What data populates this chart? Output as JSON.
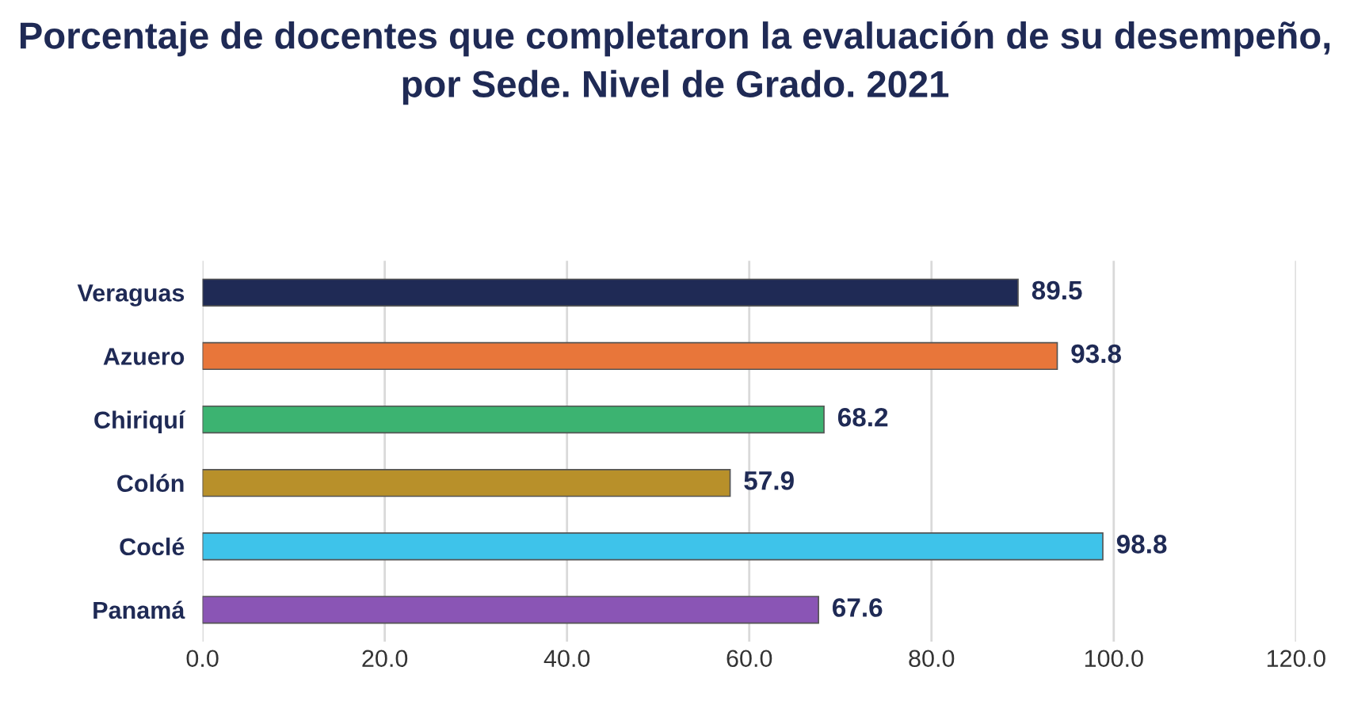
{
  "chart_data": {
    "type": "bar",
    "orientation": "horizontal",
    "title": "Porcentaje de docentes que completaron la evaluación de su desempeño, por Sede. Nivel de Grado. 2021",
    "categories": [
      "Veraguas",
      "Azuero",
      "Chiriquí",
      "Colón",
      "Coclé",
      "Panamá"
    ],
    "values": [
      89.5,
      93.8,
      68.2,
      57.9,
      98.8,
      67.6
    ],
    "colors": [
      "#1f2a55",
      "#e8763a",
      "#3cb371",
      "#b8902a",
      "#3ec3ea",
      "#8a55b5"
    ],
    "xlim": [
      0,
      120
    ],
    "xticks": [
      {
        "value": 0,
        "label": "0.0"
      },
      {
        "value": 20,
        "label": "20.0"
      },
      {
        "value": 40,
        "label": "40.0"
      },
      {
        "value": 60,
        "label": "60.0"
      },
      {
        "value": 80,
        "label": "80.0"
      },
      {
        "value": 100,
        "label": "100.0"
      },
      {
        "value": 120,
        "label": "120.0"
      }
    ],
    "grid": "x",
    "data_labels": true,
    "legend": false
  }
}
